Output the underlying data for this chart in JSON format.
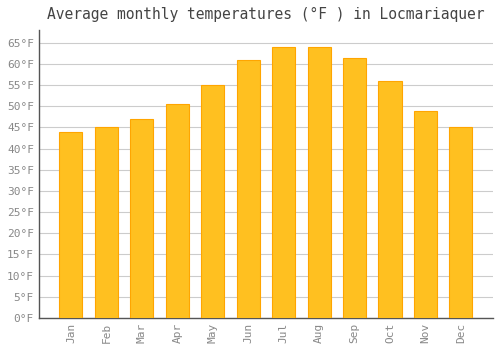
{
  "title": "Average monthly temperatures (°F ) in Locmariaquer",
  "months": [
    "Jan",
    "Feb",
    "Mar",
    "Apr",
    "May",
    "Jun",
    "Jul",
    "Aug",
    "Sep",
    "Oct",
    "Nov",
    "Dec"
  ],
  "values": [
    44,
    45,
    47,
    50.5,
    55,
    61,
    64,
    64,
    61.5,
    56,
    49,
    45
  ],
  "bar_color_face": "#FFC020",
  "bar_color_edge": "#FFA500",
  "background_color": "#FFFFFF",
  "grid_color": "#CCCCCC",
  "tick_label_color": "#888888",
  "title_color": "#444444",
  "ylim": [
    0,
    68
  ],
  "yticks": [
    0,
    5,
    10,
    15,
    20,
    25,
    30,
    35,
    40,
    45,
    50,
    55,
    60,
    65
  ],
  "ytick_labels": [
    "0°F",
    "5°F",
    "10°F",
    "15°F",
    "20°F",
    "25°F",
    "30°F",
    "35°F",
    "40°F",
    "45°F",
    "50°F",
    "55°F",
    "60°F",
    "65°F"
  ],
  "title_fontsize": 10.5,
  "tick_fontsize": 8,
  "bar_width": 0.65
}
